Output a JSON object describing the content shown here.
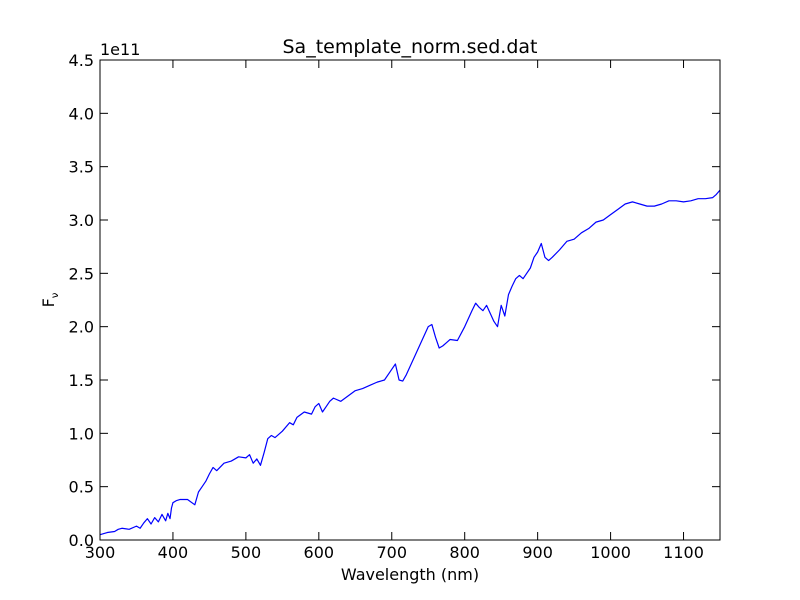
{
  "chart_data": {
    "type": "line",
    "title": "Sa_template_norm.sed.dat",
    "xlabel": "Wavelength (nm)",
    "ylabel_base": "F",
    "ylabel_subscript": "ν",
    "y_multiplier_label": "1e11",
    "xlim": [
      300,
      1150
    ],
    "ylim": [
      0,
      4.5
    ],
    "x_ticks": [
      300,
      400,
      500,
      600,
      700,
      800,
      900,
      1000,
      1100
    ],
    "y_ticks": [
      0.0,
      0.5,
      1.0,
      1.5,
      2.0,
      2.5,
      3.0,
      3.5,
      4.0,
      4.5
    ],
    "x_tick_labels": [
      "300",
      "400",
      "500",
      "600",
      "700",
      "800",
      "900",
      "1000",
      "1100"
    ],
    "y_tick_labels": [
      "0.0",
      "0.5",
      "1.0",
      "1.5",
      "2.0",
      "2.5",
      "3.0",
      "3.5",
      "4.0",
      "4.5"
    ],
    "grid": false,
    "series": [
      {
        "color": "#0000ff",
        "x": [
          300,
          310,
          320,
          325,
          330,
          340,
          350,
          355,
          360,
          365,
          370,
          375,
          380,
          385,
          390,
          393,
          396,
          398,
          400,
          405,
          410,
          420,
          430,
          435,
          440,
          445,
          450,
          455,
          460,
          470,
          480,
          490,
          500,
          505,
          510,
          515,
          520,
          525,
          530,
          535,
          540,
          550,
          560,
          565,
          570,
          580,
          590,
          595,
          600,
          605,
          610,
          615,
          620,
          630,
          640,
          650,
          660,
          670,
          680,
          690,
          700,
          705,
          710,
          715,
          720,
          730,
          740,
          750,
          755,
          760,
          765,
          770,
          775,
          780,
          790,
          800,
          810,
          815,
          820,
          825,
          830,
          840,
          845,
          850,
          855,
          860,
          865,
          870,
          875,
          880,
          890,
          895,
          900,
          905,
          910,
          915,
          920,
          930,
          940,
          950,
          960,
          970,
          980,
          990,
          1000,
          1010,
          1020,
          1030,
          1040,
          1050,
          1060,
          1070,
          1080,
          1090,
          1100,
          1110,
          1120,
          1130,
          1140,
          1145,
          1150
        ],
        "y": [
          0.05,
          0.07,
          0.08,
          0.1,
          0.11,
          0.1,
          0.13,
          0.11,
          0.16,
          0.2,
          0.15,
          0.21,
          0.17,
          0.24,
          0.18,
          0.25,
          0.2,
          0.3,
          0.35,
          0.37,
          0.38,
          0.38,
          0.33,
          0.45,
          0.5,
          0.55,
          0.62,
          0.68,
          0.65,
          0.72,
          0.74,
          0.78,
          0.77,
          0.8,
          0.72,
          0.76,
          0.7,
          0.82,
          0.95,
          0.98,
          0.96,
          1.02,
          1.1,
          1.08,
          1.15,
          1.2,
          1.18,
          1.25,
          1.28,
          1.2,
          1.25,
          1.3,
          1.33,
          1.3,
          1.35,
          1.4,
          1.42,
          1.45,
          1.48,
          1.5,
          1.6,
          1.65,
          1.5,
          1.49,
          1.55,
          1.7,
          1.85,
          2.0,
          2.02,
          1.9,
          1.8,
          1.82,
          1.85,
          1.88,
          1.87,
          2.0,
          2.15,
          2.22,
          2.18,
          2.15,
          2.2,
          2.05,
          2.0,
          2.2,
          2.1,
          2.3,
          2.38,
          2.45,
          2.48,
          2.45,
          2.55,
          2.65,
          2.7,
          2.78,
          2.65,
          2.62,
          2.65,
          2.72,
          2.8,
          2.82,
          2.88,
          2.92,
          2.98,
          3.0,
          3.05,
          3.1,
          3.15,
          3.17,
          3.15,
          3.13,
          3.13,
          3.15,
          3.18,
          3.18,
          3.17,
          3.18,
          3.2,
          3.2,
          3.21,
          3.24,
          3.28
        ]
      }
    ]
  }
}
